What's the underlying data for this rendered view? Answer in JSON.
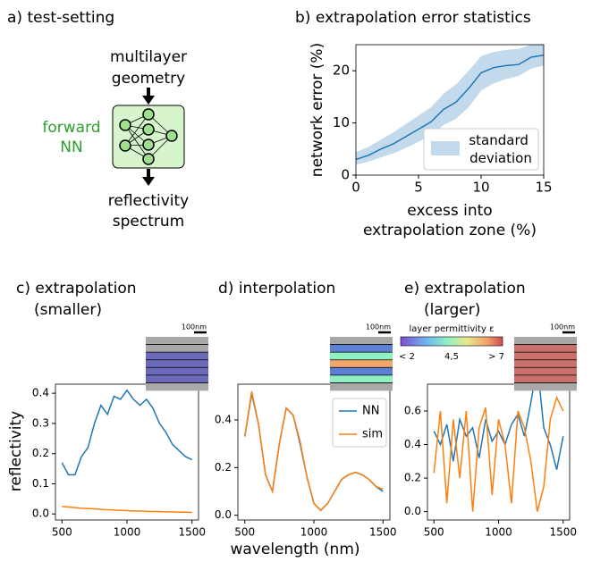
{
  "diagram": {
    "title": "a) test-setting",
    "input": [
      "multilayer",
      "geometry"
    ],
    "model": [
      "forward",
      "NN"
    ],
    "output": [
      "reflectivity",
      "spectrum"
    ]
  },
  "figure": {
    "xlabel": "wavelength (nm)",
    "ylabel": "reflectivity"
  },
  "colorbar": {
    "label": "layer permittivity ε",
    "ticks": [
      "< 2",
      "4,5",
      "> 7"
    ]
  },
  "chart_data": [
    {
      "type": "line",
      "title": [
        "b) extrapolation error statistics"
      ],
      "xlabel": [
        "excess into",
        "extrapolation zone (%)"
      ],
      "ylabel": "network error (%)",
      "x": [
        0,
        1,
        2,
        3,
        4,
        5,
        6,
        7,
        8,
        9,
        10,
        11,
        12,
        13,
        14,
        15
      ],
      "series": [
        {
          "color": "#1f77b4",
          "values": [
            3.0,
            3.8,
            5.0,
            6.0,
            7.4,
            8.8,
            10.2,
            12.6,
            14.0,
            16.6,
            19.6,
            20.6,
            21.0,
            21.2,
            22.6,
            23.0
          ]
        }
      ],
      "band": {
        "name": "standard deviation",
        "color": "#c3d9ec",
        "lower": [
          2.0,
          2.6,
          3.4,
          4.2,
          5.2,
          6.4,
          7.6,
          9.6,
          10.8,
          13.0,
          16.2,
          17.6,
          18.4,
          19.0,
          20.4,
          21.0
        ],
        "upper": [
          4.4,
          5.4,
          6.8,
          8.2,
          9.8,
          11.4,
          13.0,
          15.6,
          17.4,
          20.0,
          22.8,
          23.6,
          24.0,
          24.2,
          25.0,
          25.4
        ]
      },
      "xlim": [
        0,
        15
      ],
      "xticks": [
        0,
        5,
        10,
        15
      ],
      "ylim": [
        0,
        25
      ],
      "yticks": [
        0,
        10,
        20
      ],
      "legend": "lower right"
    },
    {
      "type": "line",
      "title": [
        "c) extrapolation",
        "(smaller)"
      ],
      "inset_label": "100nm",
      "x": [
        500,
        550,
        600,
        650,
        700,
        750,
        800,
        850,
        900,
        950,
        1000,
        1050,
        1100,
        1150,
        1200,
        1250,
        1300,
        1350,
        1400,
        1450,
        1500
      ],
      "series": [
        {
          "color": "#1f77b4",
          "values": [
            0.17,
            0.13,
            0.13,
            0.19,
            0.22,
            0.3,
            0.36,
            0.33,
            0.39,
            0.38,
            0.41,
            0.38,
            0.36,
            0.38,
            0.35,
            0.3,
            0.27,
            0.23,
            0.21,
            0.19,
            0.18
          ]
        },
        {
          "color": "#ff7f0e",
          "values": [
            0.025,
            0.023,
            0.021,
            0.019,
            0.018,
            0.017,
            0.015,
            0.014,
            0.013,
            0.012,
            0.011,
            0.01,
            0.01,
            0.009,
            0.008,
            0.008,
            0.007,
            0.007,
            0.006,
            0.006,
            0.005
          ]
        }
      ],
      "xlim": [
        450,
        1550
      ],
      "xticks": [
        500,
        1000,
        1500
      ],
      "ylim": [
        -0.02,
        0.43
      ],
      "yticks": [
        {
          "value": 0,
          "label": "0.0"
        },
        0.1,
        0.2,
        0.3,
        0.4
      ]
    },
    {
      "type": "line",
      "title": [
        "d) interpolation"
      ],
      "inset_label": "100nm",
      "x": [
        500,
        550,
        600,
        650,
        700,
        750,
        800,
        850,
        900,
        950,
        1000,
        1050,
        1100,
        1150,
        1200,
        1250,
        1300,
        1350,
        1400,
        1450,
        1500
      ],
      "series": [
        {
          "name": "NN",
          "color": "#1f77b4",
          "values": [
            0.33,
            0.51,
            0.38,
            0.17,
            0.1,
            0.3,
            0.45,
            0.42,
            0.3,
            0.16,
            0.05,
            0.02,
            0.05,
            0.1,
            0.15,
            0.17,
            0.18,
            0.17,
            0.15,
            0.12,
            0.1
          ]
        },
        {
          "name": "sim",
          "color": "#ff7f0e",
          "values": [
            0.33,
            0.52,
            0.38,
            0.17,
            0.1,
            0.3,
            0.45,
            0.42,
            0.31,
            0.16,
            0.05,
            0.02,
            0.05,
            0.1,
            0.15,
            0.17,
            0.18,
            0.17,
            0.15,
            0.12,
            0.11
          ]
        }
      ],
      "xlim": [
        450,
        1550
      ],
      "xticks": [
        500,
        1000,
        1500
      ],
      "ylim": [
        -0.02,
        0.55
      ],
      "yticks": [
        {
          "value": 0,
          "label": "0.0"
        },
        0.2,
        0.4
      ],
      "legend": "center right"
    },
    {
      "type": "line",
      "title": [
        "e) extrapolation",
        "(larger)"
      ],
      "inset_label": "100nm",
      "x": [
        500,
        550,
        600,
        650,
        700,
        750,
        800,
        850,
        900,
        950,
        1000,
        1050,
        1100,
        1150,
        1200,
        1250,
        1300,
        1350,
        1400,
        1450,
        1500
      ],
      "series": [
        {
          "color": "#1f77b4",
          "values": [
            0.48,
            0.4,
            0.52,
            0.3,
            0.55,
            0.45,
            0.5,
            0.32,
            0.55,
            0.42,
            0.48,
            0.4,
            0.52,
            0.58,
            0.45,
            0.65,
            0.88,
            0.5,
            0.4,
            0.25,
            0.45
          ]
        },
        {
          "color": "#ff7f0e",
          "values": [
            0.23,
            0.6,
            0.05,
            0.55,
            0.2,
            0.6,
            0.0,
            0.5,
            0.62,
            0.1,
            0.55,
            0.4,
            0.05,
            0.6,
            0.5,
            0.3,
            0.0,
            0.15,
            0.55,
            0.68,
            0.6
          ]
        }
      ],
      "xlim": [
        450,
        1550
      ],
      "xticks": [
        500,
        1000,
        1500
      ],
      "ylim": [
        -0.05,
        0.76
      ],
      "yticks": [
        {
          "value": 0,
          "label": "0.0"
        },
        0.2,
        0.4,
        0.6
      ]
    }
  ]
}
